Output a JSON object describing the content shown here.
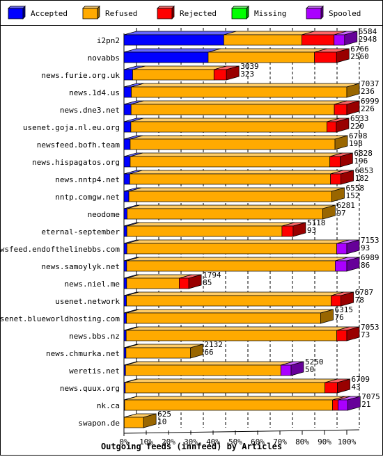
{
  "chart_data": {
    "type": "bar",
    "orientation": "horizontal",
    "stacked": true,
    "title": "Outgoing feeds (innfeed) by Articles",
    "xlim": [
      0,
      100
    ],
    "x_ticks": [
      "0%",
      "10%",
      "20%",
      "30%",
      "40%",
      "50%",
      "60%",
      "70%",
      "80%",
      "90%",
      "100%"
    ],
    "legend_position": "top",
    "series": [
      {
        "name": "Accepted",
        "color": "#0000ff"
      },
      {
        "name": "Refused",
        "color": "#ffaa00"
      },
      {
        "name": "Rejected",
        "color": "#ff0000"
      },
      {
        "name": "Missing",
        "color": "#00ff00"
      },
      {
        "name": "Spooled",
        "color": "#aa00ff"
      }
    ],
    "rows": [
      {
        "label": "i2pn2",
        "total": "6584",
        "accepted": "2948",
        "pct": [
          44.8,
          35.0,
          14.5,
          0,
          4.7
        ]
      },
      {
        "label": "novabbs",
        "total": "6766",
        "accepted": "2560",
        "pct": [
          37.8,
          47.7,
          9.9,
          0,
          0
        ]
      },
      {
        "label": "news.furie.org.uk",
        "total": "3039",
        "accepted": "323",
        "pct": [
          3.9,
          36.5,
          5.6,
          0,
          0
        ]
      },
      {
        "label": "news.1d4.us",
        "total": "7037",
        "accepted": "236",
        "pct": [
          3.3,
          96.7,
          0,
          0,
          0
        ]
      },
      {
        "label": "news.dne3.net",
        "total": "6999",
        "accepted": "226",
        "pct": [
          3.2,
          91.2,
          5.6,
          0,
          0
        ]
      },
      {
        "label": "usenet.goja.nl.eu.org",
        "total": "6533",
        "accepted": "220",
        "pct": [
          3.1,
          88.0,
          4.2,
          0,
          0
        ]
      },
      {
        "label": "newsfeed.bofh.team",
        "total": "6798",
        "accepted": "198",
        "pct": [
          2.8,
          91.9,
          0,
          0,
          0
        ]
      },
      {
        "label": "news.hispagatos.org",
        "total": "6828",
        "accepted": "196",
        "pct": [
          2.8,
          89.6,
          4.6,
          0,
          0
        ]
      },
      {
        "label": "news.nntp4.net",
        "total": "6853",
        "accepted": "182",
        "pct": [
          2.6,
          90.1,
          4.7,
          0,
          0
        ]
      },
      {
        "label": "nntp.comgw.net",
        "total": "6558",
        "accepted": "152",
        "pct": [
          2.2,
          91.1,
          0,
          0,
          0
        ]
      },
      {
        "label": "neodome",
        "total": "6281",
        "accepted": "97",
        "pct": [
          1.4,
          87.8,
          0,
          0,
          0
        ]
      },
      {
        "label": "eternal-september",
        "total": "5118",
        "accepted": "93",
        "pct": [
          1.3,
          69.6,
          5.0,
          0,
          0
        ]
      },
      {
        "label": "newsfeed.endofthelinebbs.com",
        "total": "7153",
        "accepted": "93",
        "pct": [
          1.3,
          94.2,
          0,
          0,
          4.5
        ]
      },
      {
        "label": "news.samoylyk.net",
        "total": "6989",
        "accepted": "86",
        "pct": [
          1.2,
          93.6,
          0,
          0,
          5.2
        ]
      },
      {
        "label": "news.niel.me",
        "total": "1794",
        "accepted": "85",
        "pct": [
          1.2,
          23.6,
          4.3,
          0,
          0
        ]
      },
      {
        "label": "usenet.network",
        "total": "6787",
        "accepted": "78",
        "pct": [
          1.1,
          91.9,
          4.4,
          0,
          0
        ]
      },
      {
        "label": "usenet.blueworldhosting.com",
        "total": "6315",
        "accepted": "76",
        "pct": [
          1.1,
          87.2,
          0,
          0,
          0
        ]
      },
      {
        "label": "news.bbs.nz",
        "total": "7053",
        "accepted": "73",
        "pct": [
          1.0,
          94.5,
          4.5,
          0,
          0
        ]
      },
      {
        "label": "news.chmurka.net",
        "total": "2132",
        "accepted": "66",
        "pct": [
          0.9,
          28.9,
          0,
          0,
          0
        ]
      },
      {
        "label": "weretis.net",
        "total": "5250",
        "accepted": "50",
        "pct": [
          0.7,
          69.7,
          0,
          0,
          4.6
        ]
      },
      {
        "label": "news.quux.org",
        "total": "6709",
        "accepted": "43",
        "pct": [
          0.6,
          89.6,
          5.6,
          0,
          0
        ]
      },
      {
        "label": "nk.ca",
        "total": "7075",
        "accepted": "21",
        "pct": [
          0.3,
          93.3,
          2.5,
          0,
          4.3
        ]
      },
      {
        "label": "swapon.de",
        "total": "625",
        "accepted": "10",
        "pct": [
          0.1,
          8.7,
          0,
          0,
          0
        ]
      }
    ]
  }
}
